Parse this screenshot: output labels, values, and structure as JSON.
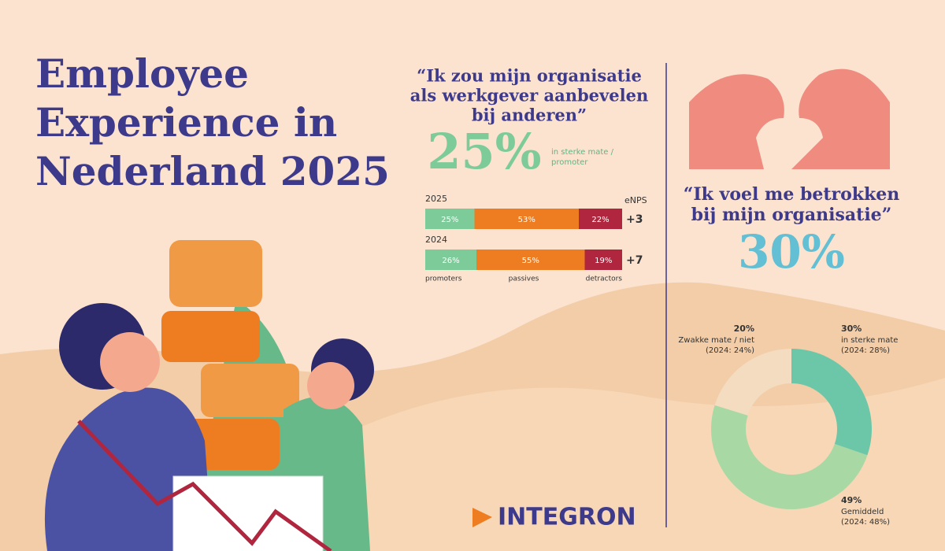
{
  "header": {
    "title_lines": [
      "Employee",
      "Experience in",
      "Nederland 2025"
    ]
  },
  "quote1": {
    "text_lines": [
      "“Ik zou mijn organisatie",
      "als werkgever aanbevelen",
      "bij anderen”"
    ],
    "stat": {
      "value": 25,
      "label": "25%",
      "caption_lines": [
        "in sterke mate /",
        "promoter"
      ]
    }
  },
  "quote2": {
    "text_lines": [
      "“Ik voel me betrokken",
      "bij mijn organisatie”"
    ],
    "stat": {
      "value": 30,
      "label": "30%"
    }
  },
  "logo": "INTEGRON",
  "chart_data": [
    {
      "type": "bar",
      "orientation": "horizontal",
      "stacked": true,
      "categories": [
        "2025",
        "2024"
      ],
      "xlim": [
        0,
        100
      ],
      "series": [
        {
          "name": "promoters",
          "color": "#7ecb9a",
          "values": [
            25,
            26
          ],
          "value_labels": [
            "25%",
            "26%"
          ]
        },
        {
          "name": "passives",
          "color": "#ee7d22",
          "values": [
            53,
            55
          ],
          "value_labels": [
            "53%",
            "55%"
          ]
        },
        {
          "name": "detractors",
          "color": "#b0263f",
          "values": [
            22,
            19
          ],
          "value_labels": [
            "22%",
            "19%"
          ]
        }
      ],
      "enps": {
        "title": "eNPS",
        "values": [
          3,
          7
        ],
        "value_labels": [
          "+3",
          "+7"
        ]
      }
    },
    {
      "type": "pie",
      "donut": true,
      "categories": [
        "in sterke mate",
        "Gemiddeld",
        "Zwakke mate / niet"
      ],
      "values": [
        30,
        49,
        20
      ],
      "value_labels": [
        "30%",
        "49%",
        "20%"
      ],
      "colors": [
        "#6cc7a8",
        "#a8d9a4",
        "#f3dcc0"
      ],
      "notes": [
        "(2024: 28%)",
        "(2024: 48%)",
        "(2024: 24%)"
      ]
    }
  ]
}
